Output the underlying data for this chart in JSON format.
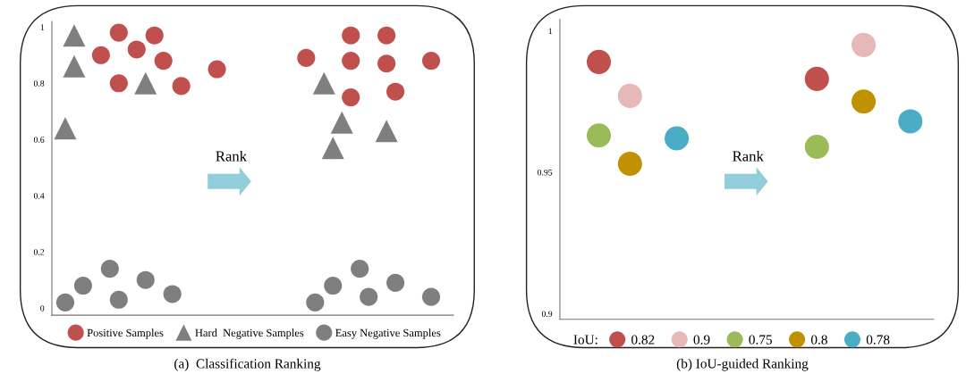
{
  "chart_data": [
    {
      "type": "scatter",
      "title": "(a)  Classification Ranking",
      "annotations": [
        "Rank"
      ],
      "legend": "bottom",
      "tick_labels": "y",
      "categories": [
        null,
        null,
        null,
        null,
        null,
        null,
        null,
        null,
        null,
        null,
        null,
        null,
        null,
        null,
        null,
        null,
        null,
        null,
        null,
        null,
        null,
        null,
        null,
        null,
        null,
        null,
        null,
        null,
        null,
        null,
        null,
        null,
        null,
        null,
        null,
        null,
        null,
        null,
        null,
        null,
        null,
        null,
        null,
        null,
        null
      ],
      "ylim": [
        -0.025,
        1.02
      ],
      "yticks": [
        0,
        0.2,
        0.4,
        0.6,
        0.8,
        1
      ],
      "series": [
        {
          "name": "Positive Samples",
          "color": "#c0504d",
          "marker": "circle",
          "values": [
            null,
            null,
            null,
            null,
            null,
            0.9,
            null,
            0.98,
            null,
            0.92,
            null,
            0.97,
            0.88,
            null,
            0.79,
            null,
            null,
            null,
            0.85,
            null,
            null,
            null,
            null,
            null,
            null,
            null,
            null,
            null,
            0.89,
            null,
            null,
            null,
            null,
            0.97,
            null,
            null,
            null,
            0.97,
            0.77,
            null,
            null,
            null,
            0.88,
            null,
            null
          ]
        },
        {
          "color": "#c0504d",
          "marker": "circle",
          "values": [
            null,
            null,
            null,
            null,
            null,
            null,
            null,
            0.8,
            null,
            null,
            null,
            null,
            null,
            null,
            null,
            null,
            null,
            null,
            null,
            null,
            null,
            null,
            null,
            null,
            null,
            null,
            null,
            null,
            null,
            null,
            null,
            null,
            null,
            0.88,
            null,
            null,
            null,
            0.87,
            null,
            null,
            null,
            null,
            null,
            null,
            null
          ]
        },
        {
          "color": "#c0504d",
          "marker": "circle",
          "values": [
            null,
            null,
            null,
            null,
            null,
            null,
            null,
            null,
            null,
            null,
            null,
            null,
            null,
            null,
            null,
            null,
            null,
            null,
            null,
            null,
            null,
            null,
            null,
            null,
            null,
            null,
            null,
            null,
            null,
            null,
            null,
            null,
            null,
            0.75,
            null,
            null,
            null,
            null,
            null,
            null,
            null,
            null,
            null,
            null,
            null
          ]
        },
        {
          "name": "Hard  Negative Samples",
          "color": "#7f7f7f",
          "marker": "triangle",
          "values": [
            null,
            0.64,
            0.97,
            null,
            null,
            null,
            null,
            null,
            null,
            null,
            0.8,
            null,
            null,
            null,
            null,
            null,
            null,
            null,
            null,
            null,
            null,
            null,
            null,
            null,
            null,
            null,
            null,
            null,
            null,
            null,
            0.8,
            0.57,
            0.66,
            null,
            null,
            null,
            null,
            0.63,
            null,
            null,
            null,
            null,
            null,
            null,
            null
          ]
        },
        {
          "color": "#7f7f7f",
          "marker": "triangle",
          "values": [
            null,
            null,
            0.86,
            null,
            null,
            null,
            null,
            null,
            null,
            null,
            null,
            null,
            null,
            null,
            null,
            null,
            null,
            null,
            null,
            null,
            null,
            null,
            null,
            null,
            null,
            null,
            null,
            null,
            null,
            null,
            null,
            null,
            null,
            null,
            null,
            null,
            null,
            null,
            null,
            null,
            null,
            null,
            null,
            null,
            null
          ]
        },
        {
          "name": "Easy Negative Samples",
          "color": "#7f7f7f",
          "marker": "circle",
          "values": [
            null,
            0.02,
            null,
            0.08,
            null,
            null,
            0.14,
            0.03,
            null,
            null,
            0.1,
            null,
            null,
            0.05,
            null,
            null,
            null,
            null,
            null,
            null,
            null,
            null,
            null,
            null,
            null,
            null,
            null,
            null,
            null,
            0.02,
            null,
            0.08,
            null,
            null,
            0.14,
            0.04,
            null,
            null,
            0.09,
            null,
            null,
            null,
            0.04,
            null,
            null
          ]
        }
      ]
    },
    {
      "type": "scatter",
      "title": "(b) IoU-guided Ranking",
      "annotations": [
        "Rank"
      ],
      "legend": "bottom",
      "legend_title": "IoU:",
      "tick_labels": "y",
      "marker": "circle",
      "categories": [
        null,
        null,
        null,
        null,
        null,
        null,
        null,
        null,
        null,
        null,
        null,
        null,
        null,
        null,
        null,
        null,
        null,
        null,
        null,
        null,
        null,
        null,
        null,
        null
      ],
      "ylim": [
        0.898,
        1.004
      ],
      "yticks": [
        0.9,
        0.95,
        1
      ],
      "series": [
        {
          "name": "0.82",
          "color": "#c0504d",
          "values": [
            null,
            null,
            0.989,
            null,
            null,
            null,
            null,
            null,
            null,
            null,
            null,
            null,
            null,
            null,
            null,
            null,
            0.983,
            null,
            null,
            null,
            null,
            null,
            null,
            null
          ]
        },
        {
          "name": "0.9",
          "color": "#e6b8b7",
          "values": [
            null,
            null,
            null,
            null,
            0.977,
            null,
            null,
            null,
            null,
            null,
            null,
            null,
            null,
            null,
            null,
            null,
            null,
            null,
            null,
            0.995,
            null,
            null,
            null,
            null
          ]
        },
        {
          "name": "0.75",
          "color": "#9bbb59",
          "values": [
            null,
            null,
            0.963,
            null,
            null,
            null,
            null,
            null,
            null,
            null,
            null,
            null,
            null,
            null,
            null,
            null,
            0.959,
            null,
            null,
            null,
            null,
            null,
            null,
            null
          ]
        },
        {
          "name": "0.8",
          "color": "#c09100",
          "values": [
            null,
            null,
            null,
            null,
            0.953,
            null,
            null,
            null,
            null,
            null,
            null,
            null,
            null,
            null,
            null,
            null,
            null,
            null,
            null,
            0.975,
            null,
            null,
            null,
            null
          ]
        },
        {
          "name": "0.78",
          "color": "#4bacc6",
          "values": [
            null,
            null,
            null,
            null,
            null,
            null,
            null,
            0.962,
            null,
            null,
            null,
            null,
            null,
            null,
            null,
            null,
            null,
            null,
            null,
            null,
            null,
            null,
            0.968,
            null
          ]
        }
      ]
    }
  ]
}
